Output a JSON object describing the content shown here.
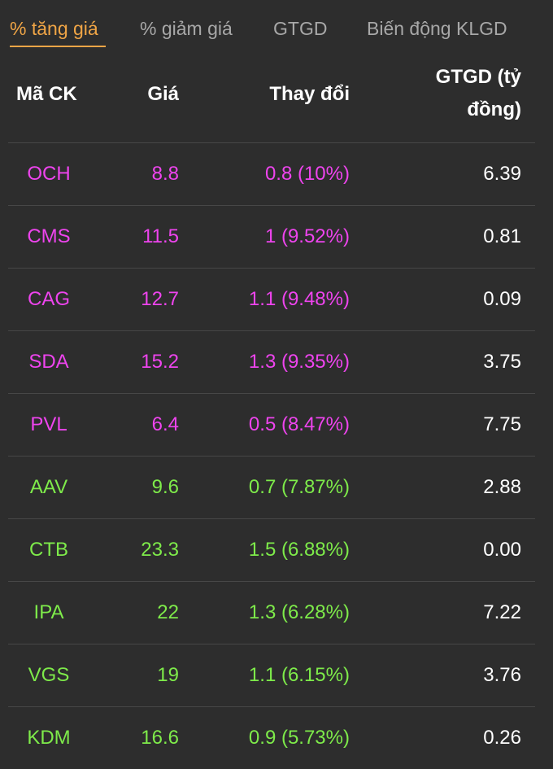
{
  "tabs": [
    {
      "label": "% tăng giá",
      "active": true
    },
    {
      "label": "% giảm giá",
      "active": false
    },
    {
      "label": "GTGD",
      "active": false
    },
    {
      "label": "Biến động KLGD",
      "active": false
    }
  ],
  "columns": {
    "code": "Mã CK",
    "price": "Giá",
    "change": "Thay đổi",
    "value_line1": "GTGD (tỷ",
    "value_line2": "đồng)"
  },
  "colors": {
    "ceiling": "#ee44ee",
    "up": "#7eeb4a",
    "value": "#ffffff",
    "accent": "#f0a546",
    "background": "#2d2d2d"
  },
  "rows": [
    {
      "code": "OCH",
      "price": "8.8",
      "change": "0.8 (10%)",
      "value": "6.39",
      "status": "ceiling"
    },
    {
      "code": "CMS",
      "price": "11.5",
      "change": "1 (9.52%)",
      "value": "0.81",
      "status": "ceiling"
    },
    {
      "code": "CAG",
      "price": "12.7",
      "change": "1.1 (9.48%)",
      "value": "0.09",
      "status": "ceiling"
    },
    {
      "code": "SDA",
      "price": "15.2",
      "change": "1.3 (9.35%)",
      "value": "3.75",
      "status": "ceiling"
    },
    {
      "code": "PVL",
      "price": "6.4",
      "change": "0.5 (8.47%)",
      "value": "7.75",
      "status": "ceiling"
    },
    {
      "code": "AAV",
      "price": "9.6",
      "change": "0.7 (7.87%)",
      "value": "2.88",
      "status": "up"
    },
    {
      "code": "CTB",
      "price": "23.3",
      "change": "1.5 (6.88%)",
      "value": "0.00",
      "status": "up"
    },
    {
      "code": "IPA",
      "price": "22",
      "change": "1.3 (6.28%)",
      "value": "7.22",
      "status": "up"
    },
    {
      "code": "VGS",
      "price": "19",
      "change": "1.1 (6.15%)",
      "value": "3.76",
      "status": "up"
    },
    {
      "code": "KDM",
      "price": "16.6",
      "change": "0.9 (5.73%)",
      "value": "0.26",
      "status": "up"
    }
  ]
}
